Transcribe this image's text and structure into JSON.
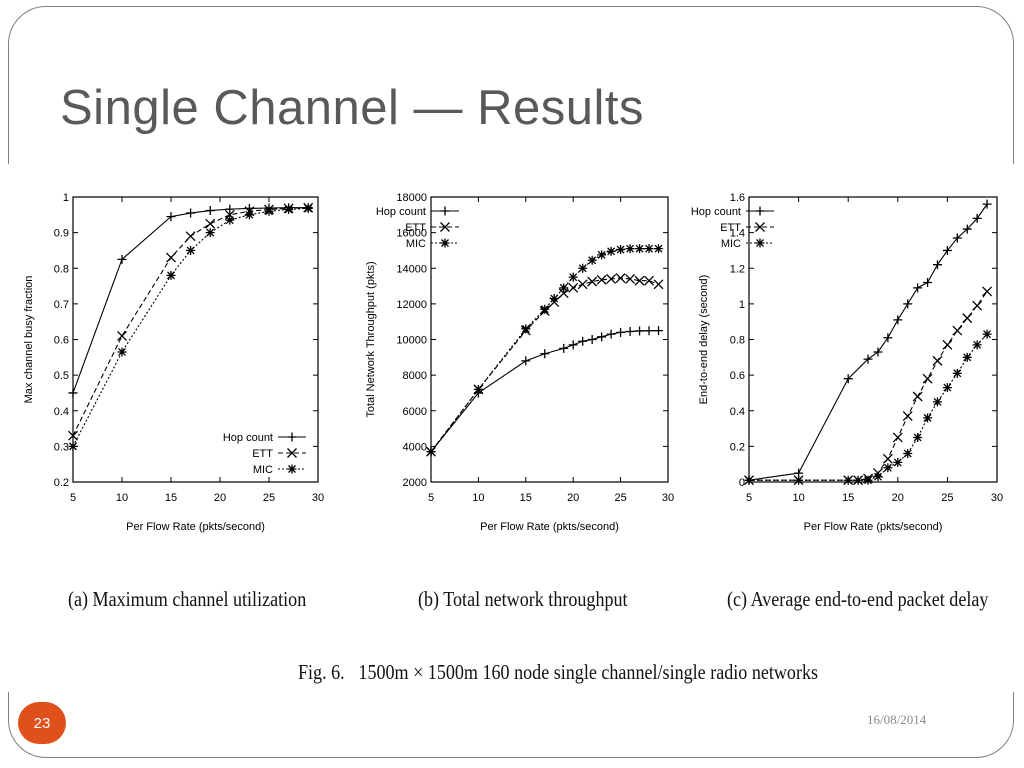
{
  "slide": {
    "title": "Single Channel — Results",
    "page_number": "23",
    "date": "16/08/2014"
  },
  "figure": {
    "fig_label": "Fig. 6.",
    "fig_text": "1500m × 1500m 160 node single channel/single radio networks"
  },
  "chart_data": [
    {
      "type": "line",
      "caption": "(a) Maximum channel utilization",
      "xlabel": "Per Flow Rate (pkts/second)",
      "ylabel": "Max channel busy fraction",
      "xlim": [
        5,
        30
      ],
      "ylim": [
        0.2,
        1
      ],
      "xticks": [
        5,
        10,
        15,
        20,
        25,
        30
      ],
      "xtick_labels": [
        "5",
        "10",
        "15",
        "20",
        "25",
        "30"
      ],
      "yticks": [
        0.2,
        0.3,
        0.4,
        0.5,
        0.6,
        0.7,
        0.8,
        0.9,
        1
      ],
      "ytick_labels": [
        "0.2",
        "0.3",
        "0.4",
        "0.5",
        "0.6",
        "0.7",
        "0.8",
        "0.9",
        "1"
      ],
      "grid": false,
      "legend_position": "bottom-right",
      "series": [
        {
          "name": "Hop count",
          "marker": "plus",
          "dash": "",
          "x": [
            5,
            10,
            15,
            17,
            19,
            21,
            23,
            25,
            27,
            29
          ],
          "y": [
            0.45,
            0.825,
            0.945,
            0.955,
            0.962,
            0.966,
            0.968,
            0.969,
            0.97,
            0.97
          ]
        },
        {
          "name": "ETT",
          "marker": "x",
          "dash": "5,3",
          "x": [
            5,
            10,
            15,
            17,
            19,
            21,
            23,
            25,
            27,
            29
          ],
          "y": [
            0.33,
            0.61,
            0.83,
            0.89,
            0.925,
            0.95,
            0.96,
            0.965,
            0.968,
            0.97
          ]
        },
        {
          "name": "MIC",
          "marker": "star",
          "dash": "2,2",
          "x": [
            5,
            10,
            15,
            17,
            19,
            21,
            23,
            25,
            27,
            29
          ],
          "y": [
            0.3,
            0.565,
            0.78,
            0.85,
            0.9,
            0.935,
            0.95,
            0.96,
            0.965,
            0.968
          ]
        }
      ]
    },
    {
      "type": "line",
      "caption": "(b) Total network throughput",
      "xlabel": "Per Flow Rate (pkts/second)",
      "ylabel": "Total Network Throughput (pkts)",
      "xlim": [
        5,
        30
      ],
      "ylim": [
        2000,
        18000
      ],
      "xticks": [
        5,
        10,
        15,
        20,
        25,
        30
      ],
      "xtick_labels": [
        "5",
        "10",
        "15",
        "20",
        "25",
        "30"
      ],
      "yticks": [
        2000,
        4000,
        6000,
        8000,
        10000,
        12000,
        14000,
        16000,
        18000
      ],
      "ytick_labels": [
        "2000",
        "4000",
        "6000",
        "8000",
        "10000",
        "12000",
        "14000",
        "16000",
        "18000"
      ],
      "grid": false,
      "legend_position": "top-left",
      "series": [
        {
          "name": "Hop count",
          "marker": "plus",
          "dash": "",
          "x": [
            5,
            10,
            15,
            17,
            19,
            20,
            21,
            22,
            23,
            24,
            25,
            26,
            27,
            28,
            29
          ],
          "y": [
            3700,
            7000,
            8800,
            9200,
            9500,
            9700,
            9900,
            10000,
            10150,
            10300,
            10400,
            10450,
            10480,
            10490,
            10500
          ]
        },
        {
          "name": "ETT",
          "marker": "x",
          "dash": "5,3",
          "x": [
            5,
            10,
            15,
            17,
            18,
            19,
            20,
            21,
            22,
            23,
            24,
            25,
            26,
            27,
            28,
            29
          ],
          "y": [
            3700,
            7200,
            10500,
            11600,
            12100,
            12600,
            12900,
            13100,
            13250,
            13350,
            13400,
            13450,
            13400,
            13300,
            13300,
            13100
          ]
        },
        {
          "name": "MIC",
          "marker": "star",
          "dash": "2,2",
          "x": [
            5,
            10,
            15,
            17,
            18,
            19,
            20,
            21,
            22,
            23,
            24,
            25,
            26,
            27,
            28,
            29
          ],
          "y": [
            3700,
            7200,
            10600,
            11700,
            12300,
            12900,
            13500,
            14000,
            14450,
            14750,
            14950,
            15050,
            15100,
            15100,
            15100,
            15100
          ]
        }
      ]
    },
    {
      "type": "line",
      "caption": "(c) Average end-to-end packet delay",
      "xlabel": "Per Flow Rate (pkts/second)",
      "ylabel": "End-to-end delay (second)",
      "xlim": [
        5,
        30
      ],
      "ylim": [
        0,
        1.6
      ],
      "xticks": [
        5,
        10,
        15,
        20,
        25,
        30
      ],
      "xtick_labels": [
        "5",
        "10",
        "15",
        "20",
        "25",
        "30"
      ],
      "yticks": [
        0,
        0.2,
        0.4,
        0.6,
        0.8,
        1,
        1.2,
        1.4,
        1.6
      ],
      "ytick_labels": [
        "0",
        "0.2",
        "0.4",
        "0.6",
        "0.8",
        "1",
        "1.2",
        "1.4",
        "1.6"
      ],
      "grid": false,
      "legend_position": "top-left",
      "series": [
        {
          "name": "Hop count",
          "marker": "plus",
          "dash": "",
          "x": [
            5,
            10,
            15,
            17,
            18,
            19,
            20,
            21,
            22,
            23,
            24,
            25,
            26,
            27,
            28,
            29
          ],
          "y": [
            0.01,
            0.05,
            0.58,
            0.69,
            0.73,
            0.81,
            0.91,
            1.0,
            1.09,
            1.12,
            1.22,
            1.3,
            1.37,
            1.42,
            1.48,
            1.56
          ]
        },
        {
          "name": "ETT",
          "marker": "x",
          "dash": "5,3",
          "x": [
            5,
            10,
            15,
            16,
            17,
            18,
            19,
            20,
            21,
            22,
            23,
            24,
            25,
            26,
            27,
            28,
            29
          ],
          "y": [
            0.01,
            0.01,
            0.01,
            0.01,
            0.02,
            0.05,
            0.13,
            0.25,
            0.37,
            0.48,
            0.58,
            0.68,
            0.77,
            0.85,
            0.92,
            0.99,
            1.07
          ]
        },
        {
          "name": "MIC",
          "marker": "star",
          "dash": "2,2",
          "x": [
            5,
            10,
            15,
            16,
            17,
            18,
            19,
            20,
            21,
            22,
            23,
            24,
            25,
            26,
            27,
            28,
            29
          ],
          "y": [
            0.01,
            0.01,
            0.01,
            0.01,
            0.01,
            0.03,
            0.08,
            0.11,
            0.16,
            0.25,
            0.36,
            0.45,
            0.53,
            0.61,
            0.7,
            0.77,
            0.83
          ]
        }
      ]
    }
  ]
}
